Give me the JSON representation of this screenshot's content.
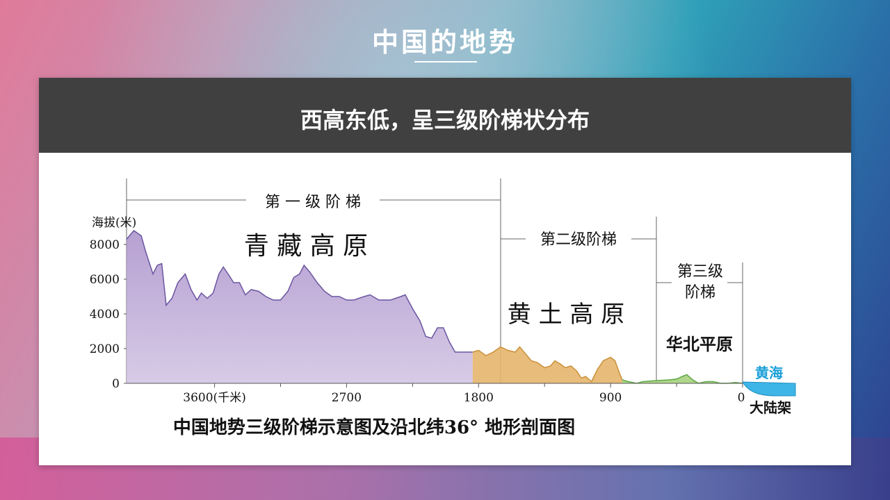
{
  "page": {
    "title": "中国的地势"
  },
  "card": {
    "header": "西高东低，呈三级阶梯状分布"
  },
  "diagram": {
    "steps": {
      "step1": "第 一 级 阶 梯",
      "step2": "第二级阶梯",
      "step3_line1": "第三级",
      "step3_line2": "阶梯"
    },
    "regions": {
      "plateau_qt": "青 藏 高 原",
      "loess": "黄 土 高 原",
      "north_plain": "华北平原",
      "yellow_sea": "黄海",
      "shelf": "大陆架"
    },
    "caption": "中国地势三级阶梯示意图及沿北纬36° 地形剖面图",
    "colors": {
      "step1": "#a98fca",
      "step2": "#e6b56b",
      "step3": "#a6d27e",
      "sea": "#3db5e6"
    }
  },
  "chart_data": {
    "type": "area",
    "ylabel": "海拔(米)",
    "y_ticks": [
      "8000",
      "6000",
      "4000",
      "2000",
      "0"
    ],
    "x_ticks": [
      "3600(千米)",
      "2700",
      "1800",
      "900",
      "0"
    ],
    "ylim": [
      0,
      9000
    ],
    "x_unit": "千米 (distance from coast)",
    "series": [
      {
        "values": [
          [
            4200,
            8300
          ],
          [
            4150,
            8800
          ],
          [
            4100,
            8500
          ],
          [
            4070,
            7600
          ],
          [
            4020,
            6300
          ],
          [
            3990,
            6800
          ],
          [
            3960,
            6900
          ],
          [
            3930,
            4500
          ],
          [
            3890,
            4900
          ],
          [
            3850,
            5800
          ],
          [
            3800,
            6300
          ],
          [
            3760,
            5400
          ],
          [
            3720,
            4800
          ],
          [
            3690,
            5200
          ],
          [
            3650,
            4900
          ],
          [
            3610,
            5200
          ],
          [
            3570,
            6300
          ],
          [
            3540,
            6700
          ],
          [
            3500,
            6200
          ],
          [
            3470,
            5800
          ],
          [
            3430,
            5800
          ],
          [
            3390,
            5100
          ],
          [
            3350,
            5400
          ],
          [
            3300,
            5300
          ],
          [
            3250,
            5000
          ],
          [
            3200,
            4800
          ],
          [
            3150,
            4800
          ],
          [
            3100,
            5300
          ],
          [
            3060,
            6100
          ],
          [
            3020,
            6300
          ],
          [
            2990,
            6800
          ],
          [
            2950,
            6400
          ],
          [
            2900,
            5800
          ],
          [
            2850,
            5300
          ],
          [
            2800,
            5000
          ],
          [
            2750,
            5000
          ],
          [
            2700,
            4800
          ],
          [
            2650,
            4800
          ],
          [
            2580,
            5000
          ],
          [
            2540,
            5100
          ],
          [
            2480,
            4800
          ],
          [
            2400,
            4800
          ],
          [
            2330,
            5000
          ],
          [
            2300,
            5100
          ],
          [
            2250,
            4300
          ],
          [
            2200,
            3600
          ],
          [
            2160,
            2700
          ],
          [
            2120,
            2600
          ],
          [
            2080,
            3200
          ],
          [
            2040,
            3200
          ],
          [
            2000,
            2400
          ],
          [
            1960,
            1800
          ],
          [
            1900,
            1800
          ],
          [
            1840,
            1800
          ]
        ]
      },
      {
        "values": [
          [
            1840,
            1800
          ],
          [
            1800,
            1900
          ],
          [
            1750,
            1600
          ],
          [
            1700,
            1800
          ],
          [
            1650,
            2100
          ],
          [
            1600,
            1900
          ],
          [
            1550,
            1800
          ],
          [
            1520,
            2100
          ],
          [
            1480,
            1700
          ],
          [
            1440,
            1300
          ],
          [
            1400,
            1200
          ],
          [
            1350,
            900
          ],
          [
            1310,
            1000
          ],
          [
            1280,
            1300
          ],
          [
            1240,
            1100
          ],
          [
            1210,
            900
          ],
          [
            1170,
            1000
          ],
          [
            1130,
            700
          ],
          [
            1100,
            300
          ],
          [
            1070,
            400
          ],
          [
            1030,
            100
          ],
          [
            990,
            800
          ],
          [
            950,
            1300
          ],
          [
            900,
            1500
          ],
          [
            870,
            1300
          ],
          [
            840,
            600
          ],
          [
            820,
            200
          ]
        ]
      },
      {
        "values": [
          [
            820,
            200
          ],
          [
            780,
            100
          ],
          [
            720,
            0
          ],
          [
            680,
            100
          ],
          [
            600,
            150
          ],
          [
            500,
            200
          ],
          [
            450,
            250
          ],
          [
            410,
            400
          ],
          [
            380,
            500
          ],
          [
            340,
            200
          ],
          [
            300,
            0
          ],
          [
            250,
            100
          ],
          [
            200,
            100
          ],
          [
            150,
            0
          ],
          [
            100,
            0
          ],
          [
            50,
            50
          ],
          [
            0,
            0
          ]
        ]
      }
    ]
  }
}
